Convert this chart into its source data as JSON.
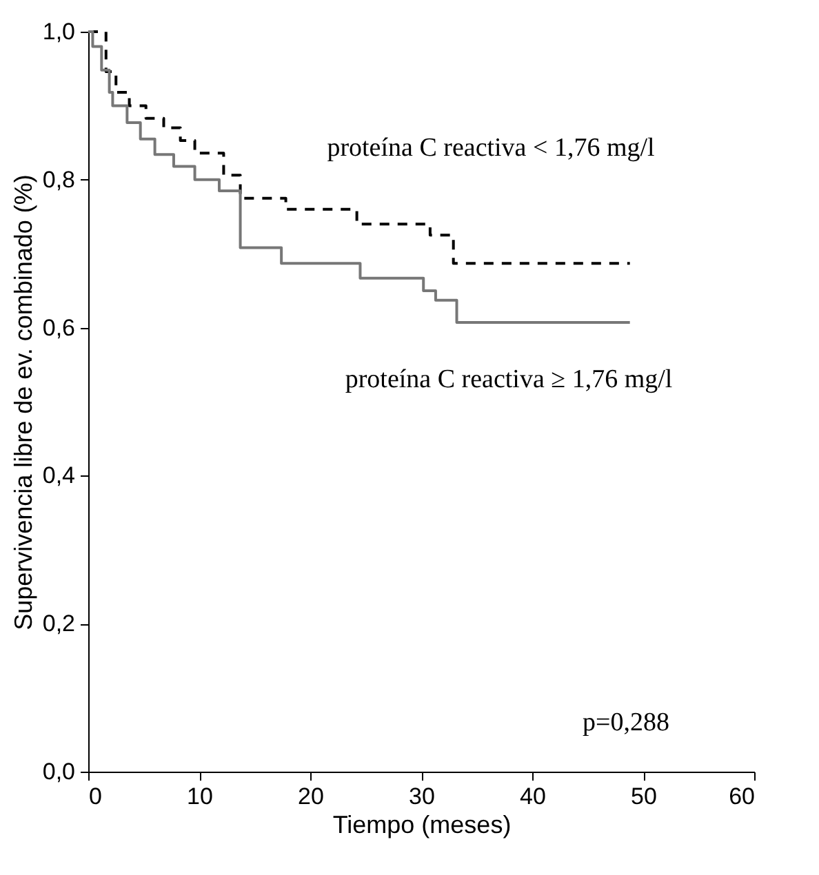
{
  "chart_data": {
    "type": "step",
    "xlabel": "Tiempo (meses)",
    "ylabel": "Supervivencia libre de ev. combinado (%)",
    "xlim": [
      0,
      60
    ],
    "xticks": [
      0,
      10,
      20,
      30,
      40,
      50,
      60
    ],
    "ylim": [
      0,
      1
    ],
    "yticks": [
      {
        "value": 0,
        "label": "0,0"
      },
      {
        "value": 0.2,
        "label": "0,2"
      },
      {
        "value": 0.4,
        "label": "0,4"
      },
      {
        "value": 0.6,
        "label": "0,6"
      },
      {
        "value": 0.8,
        "label": "0,8"
      },
      {
        "value": 1,
        "label": "1,0"
      }
    ],
    "grid": false,
    "legend": false,
    "series": [
      {
        "color": "#000000",
        "line_style": "dashed",
        "x": [
          0,
          1.6,
          2.5,
          3.7,
          5.2,
          6.8,
          8.3,
          9.6,
          12.2,
          13.7,
          17.8,
          24.2,
          30.8,
          32.9,
          48.8
        ],
        "values": [
          1,
          0.946,
          0.918,
          0.9,
          0.883,
          0.87,
          0.853,
          0.836,
          0.806,
          0.775,
          0.76,
          0.74,
          0.725,
          0.687,
          0.687
        ]
      },
      {
        "color": "#777777",
        "line_style": "solid",
        "x": [
          0,
          0.4,
          1.2,
          1.9,
          2.2,
          3.5,
          4.7,
          6,
          7.7,
          9.6,
          11.8,
          13.7,
          17.4,
          24.5,
          30.2,
          31.3,
          33.2,
          48.8
        ],
        "values": [
          1,
          0.98,
          0.948,
          0.918,
          0.9,
          0.877,
          0.855,
          0.834,
          0.818,
          0.8,
          0.785,
          0.708,
          0.687,
          0.667,
          0.65,
          0.637,
          0.607,
          0.607
        ]
      }
    ],
    "annotations": [
      "proteína C reactiva < 1,76 mg/l",
      "proteína C reactiva ≥ 1,76 mg/l",
      "p=0,288"
    ]
  }
}
